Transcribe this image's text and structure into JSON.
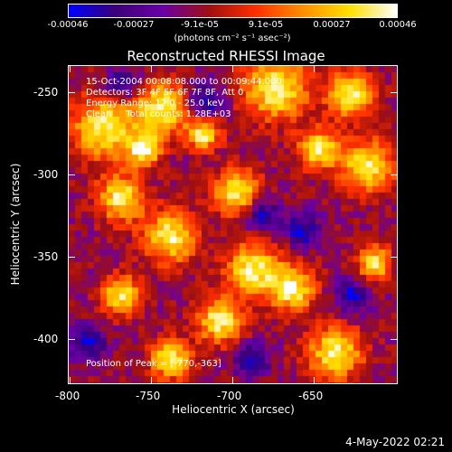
{
  "colorbar": {
    "ticks": [
      "-0.00046",
      "-0.00027",
      "-9.1e-05",
      "9.1e-05",
      "0.00027",
      "0.00046"
    ],
    "unit": "(photons cm⁻² s⁻¹ asec⁻²)"
  },
  "plot": {
    "title": "Reconstructed RHESSI Image",
    "info_lines": [
      "15-Oct-2004 00:08:08.000 to 00:09:44.000",
      "Detectors: 3F 4F 5F 6F 7F 8F, Att 0",
      "Energy Range: 12.0 - 25.0 keV",
      "Clean     Total counts: 1.28E+03"
    ],
    "peak_label": "Position of Peak = [-770,-363]",
    "y_ticks": [
      "-250",
      "-300",
      "-350",
      "-400"
    ],
    "x_ticks": [
      "-800",
      "-750",
      "-700",
      "-650"
    ],
    "x_label": "Heliocentric X (arcsec)",
    "y_label": "Heliocentric Y (arcsec)"
  },
  "datestamp": "4-May-2022 02:21",
  "colors": {
    "background": "#000000",
    "text": "#ffffff",
    "colormap": [
      "#0000ff",
      "#3c0078",
      "#6a00a8",
      "#a01010",
      "#ff3000",
      "#ff9000",
      "#ffe000",
      "#ffffff"
    ]
  }
}
